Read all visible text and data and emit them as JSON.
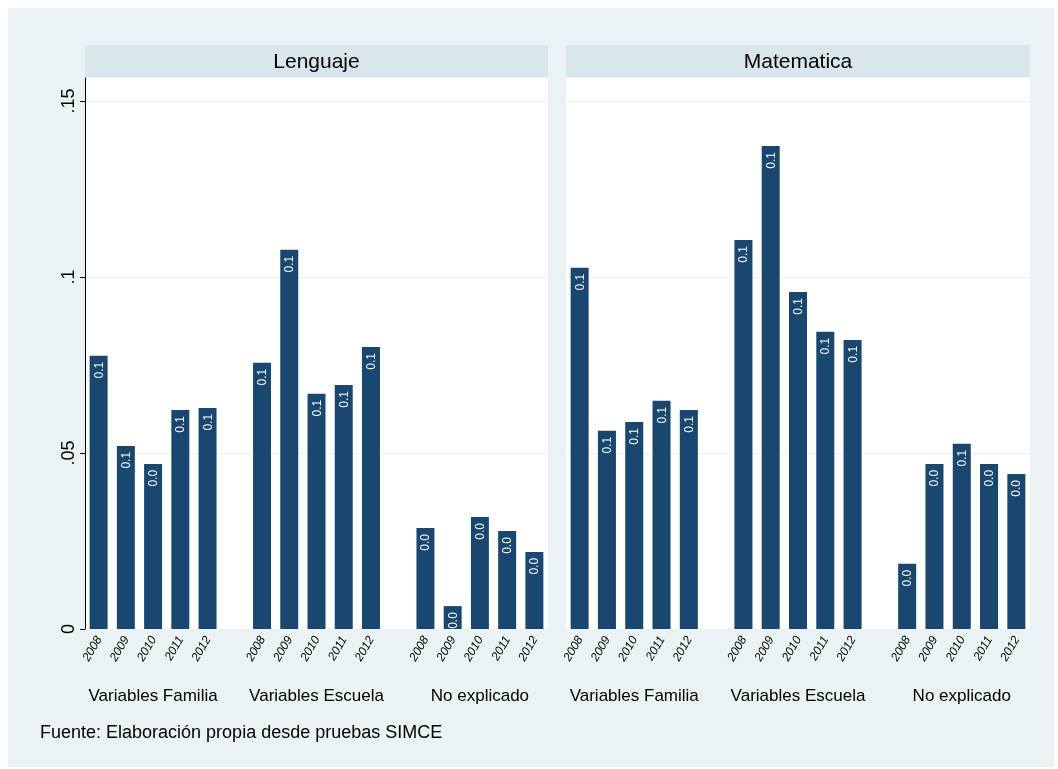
{
  "chart_data": [
    {
      "type": "bar",
      "title": "Lenguaje",
      "color": "#1a476f",
      "grid": "y",
      "ylim": [
        0,
        0.1565
      ],
      "yticks": [
        0,
        {
          "value": 0.05,
          "label": ".05"
        },
        {
          "value": 0.1,
          "label": ".1"
        },
        {
          "value": 0.15,
          "label": ".15"
        }
      ],
      "categories": [
        "2008",
        "2009",
        "2010",
        "2011",
        "2012",
        null,
        "2008",
        "2009",
        "2010",
        "2011",
        "2012",
        null,
        "2008",
        "2009",
        "2010",
        "2011",
        "2012"
      ],
      "values": [
        0.0776,
        0.052,
        0.0469,
        0.0622,
        0.0628,
        null,
        0.0756,
        0.1077,
        0.0668,
        0.0693,
        0.0801,
        null,
        0.0287,
        0.0065,
        0.0318,
        0.0278,
        0.0219
      ],
      "value_labels": [
        "0.1",
        "0.1",
        "0.0",
        "0.1",
        "0.1",
        null,
        "0.1",
        "0.1",
        "0.1",
        "0.1",
        "0.1",
        null,
        "0.0",
        "0.0",
        "0.0",
        "0.0",
        "0.0"
      ],
      "annotations": [
        "Variables Familia",
        "Variables Escuela",
        "No explicado",
        "Fuente: Elaboración propia desde pruebas SIMCE"
      ]
    },
    {
      "type": "bar",
      "title": "Matematica",
      "color": "#1a476f",
      "grid": "y",
      "ylim": [
        0,
        0.1565
      ],
      "yticks": [
        0,
        0.05,
        0.1,
        0.15
      ],
      "tick_labels": "x",
      "categories": [
        "2008",
        "2009",
        "2010",
        "2011",
        "2012",
        null,
        "2008",
        "2009",
        "2010",
        "2011",
        "2012",
        null,
        "2008",
        "2009",
        "2010",
        "2011",
        "2012"
      ],
      "values": [
        0.1026,
        0.0563,
        0.0588,
        0.0648,
        0.0622,
        null,
        0.1105,
        0.1372,
        0.0957,
        0.0844,
        0.0821,
        null,
        0.0185,
        0.0469,
        0.0526,
        0.0469,
        0.044
      ],
      "value_labels": [
        "0.1",
        "0.1",
        "0.1",
        "0.1",
        "0.1",
        null,
        "0.1",
        "0.1",
        "0.1",
        "0.1",
        "0.1",
        null,
        "0.0",
        "0.0",
        "0.1",
        "0.0",
        "0.0"
      ],
      "annotations": [
        "Variables Familia",
        "Variables Escuela",
        "No explicado"
      ]
    }
  ]
}
